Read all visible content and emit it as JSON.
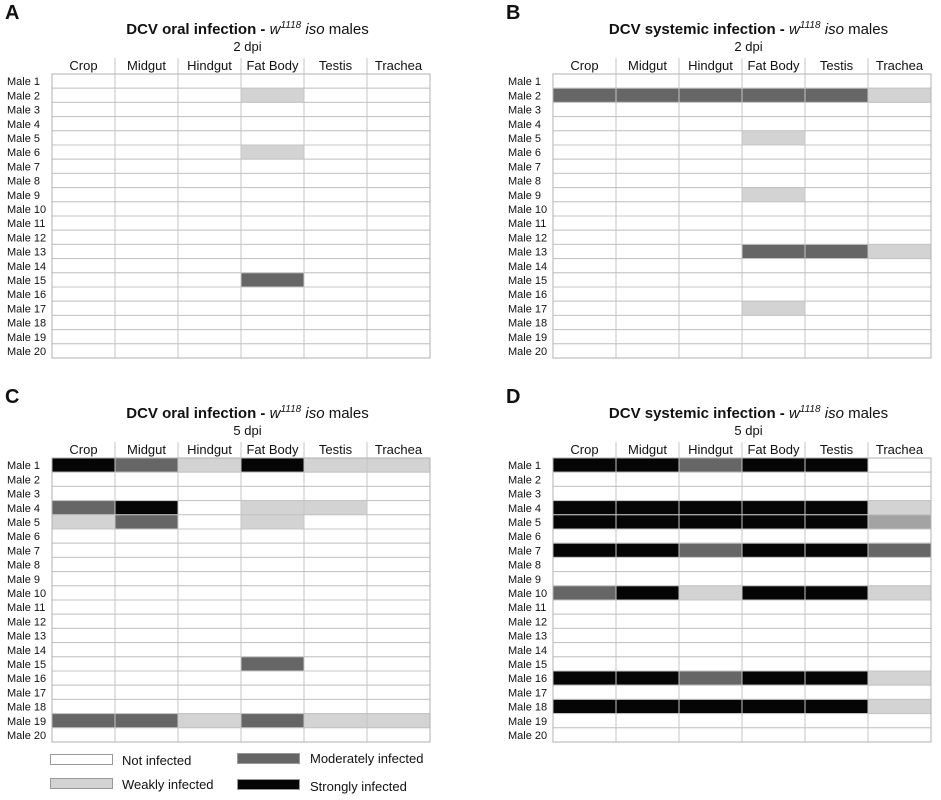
{
  "legend": {
    "not": "Not infected",
    "weak": "Weakly infected",
    "moderate": "Moderately infected",
    "strong": "Strongly infected"
  },
  "colors": {
    "none": "#ffffff",
    "weak": "#d3d3d3",
    "moderate": "#666666",
    "strong": "#050505",
    "trachea_medium": "#a3a3a3"
  },
  "chart_data": [
    {
      "type": "heatmap",
      "panel": "A",
      "title_main": "DCV oral infection - ",
      "title_genotype": "w",
      "title_superscript": "1118",
      "title_iso": " iso",
      "title_suffix": " males",
      "subtitle": "2 dpi",
      "columns": [
        "Crop",
        "Midgut",
        "Hindgut",
        "Fat Body",
        "Testis",
        "Trachea"
      ],
      "rows": [
        "Male 1",
        "Male 2",
        "Male 3",
        "Male 4",
        "Male 5",
        "Male 6",
        "Male 7",
        "Male 8",
        "Male 9",
        "Male 10",
        "Male 11",
        "Male 12",
        "Male 13",
        "Male 14",
        "Male 15",
        "Male 16",
        "Male 17",
        "Male 18",
        "Male 19",
        "Male 20"
      ],
      "values": [
        [
          0,
          0,
          0,
          0,
          0,
          0
        ],
        [
          0,
          0,
          0,
          1,
          0,
          0
        ],
        [
          0,
          0,
          0,
          0,
          0,
          0
        ],
        [
          0,
          0,
          0,
          0,
          0,
          0
        ],
        [
          0,
          0,
          0,
          0,
          0,
          0
        ],
        [
          0,
          0,
          0,
          1,
          0,
          0
        ],
        [
          0,
          0,
          0,
          0,
          0,
          0
        ],
        [
          0,
          0,
          0,
          0,
          0,
          0
        ],
        [
          0,
          0,
          0,
          0,
          0,
          0
        ],
        [
          0,
          0,
          0,
          0,
          0,
          0
        ],
        [
          0,
          0,
          0,
          0,
          0,
          0
        ],
        [
          0,
          0,
          0,
          0,
          0,
          0
        ],
        [
          0,
          0,
          0,
          0,
          0,
          0
        ],
        [
          0,
          0,
          0,
          0,
          0,
          0
        ],
        [
          0,
          0,
          0,
          2,
          0,
          0
        ],
        [
          0,
          0,
          0,
          0,
          0,
          0
        ],
        [
          0,
          0,
          0,
          0,
          0,
          0
        ],
        [
          0,
          0,
          0,
          0,
          0,
          0
        ],
        [
          0,
          0,
          0,
          0,
          0,
          0
        ],
        [
          0,
          0,
          0,
          0,
          0,
          0
        ]
      ]
    },
    {
      "type": "heatmap",
      "panel": "B",
      "title_main": "DCV systemic infection - ",
      "title_genotype": "w",
      "title_superscript": "1118",
      "title_iso": " iso",
      "title_suffix": " males",
      "subtitle": "2 dpi",
      "columns": [
        "Crop",
        "Midgut",
        "Hindgut",
        "Fat Body",
        "Testis",
        "Trachea"
      ],
      "rows": [
        "Male 1",
        "Male 2",
        "Male 3",
        "Male 4",
        "Male 5",
        "Male 6",
        "Male 7",
        "Male 8",
        "Male 9",
        "Male 10",
        "Male 11",
        "Male 12",
        "Male 13",
        "Male 14",
        "Male 15",
        "Male 16",
        "Male 17",
        "Male 18",
        "Male 19",
        "Male 20"
      ],
      "values": [
        [
          0,
          0,
          0,
          0,
          0,
          0
        ],
        [
          2,
          2,
          2,
          2,
          2,
          1
        ],
        [
          0,
          0,
          0,
          0,
          0,
          0
        ],
        [
          0,
          0,
          0,
          0,
          0,
          0
        ],
        [
          0,
          0,
          0,
          1,
          0,
          0
        ],
        [
          0,
          0,
          0,
          0,
          0,
          0
        ],
        [
          0,
          0,
          0,
          0,
          0,
          0
        ],
        [
          0,
          0,
          0,
          0,
          0,
          0
        ],
        [
          0,
          0,
          0,
          1,
          0,
          0
        ],
        [
          0,
          0,
          0,
          0,
          0,
          0
        ],
        [
          0,
          0,
          0,
          0,
          0,
          0
        ],
        [
          0,
          0,
          0,
          0,
          0,
          0
        ],
        [
          0,
          0,
          0,
          2,
          2,
          1
        ],
        [
          0,
          0,
          0,
          0,
          0,
          0
        ],
        [
          0,
          0,
          0,
          0,
          0,
          0
        ],
        [
          0,
          0,
          0,
          0,
          0,
          0
        ],
        [
          0,
          0,
          0,
          1,
          0,
          0
        ],
        [
          0,
          0,
          0,
          0,
          0,
          0
        ],
        [
          0,
          0,
          0,
          0,
          0,
          0
        ],
        [
          0,
          0,
          0,
          0,
          0,
          0
        ]
      ]
    },
    {
      "type": "heatmap",
      "panel": "C",
      "title_main": "DCV oral infection - ",
      "title_genotype": "w",
      "title_superscript": "1118",
      "title_iso": " iso",
      "title_suffix": " males",
      "subtitle": "5 dpi",
      "columns": [
        "Crop",
        "Midgut",
        "Hindgut",
        "Fat Body",
        "Testis",
        "Trachea"
      ],
      "rows": [
        "Male 1",
        "Male 2",
        "Male 3",
        "Male 4",
        "Male 5",
        "Male 6",
        "Male 7",
        "Male 8",
        "Male 9",
        "Male 10",
        "Male 11",
        "Male 12",
        "Male 13",
        "Male 14",
        "Male 15",
        "Male 16",
        "Male 17",
        "Male 18",
        "Male 19",
        "Male 20"
      ],
      "values": [
        [
          3,
          2,
          1,
          3,
          1,
          1
        ],
        [
          0,
          0,
          0,
          0,
          0,
          0
        ],
        [
          0,
          0,
          0,
          0,
          0,
          0
        ],
        [
          2,
          3,
          0,
          1,
          1,
          0
        ],
        [
          1,
          2,
          0,
          1,
          0,
          0
        ],
        [
          0,
          0,
          0,
          0,
          0,
          0
        ],
        [
          0,
          0,
          0,
          0,
          0,
          0
        ],
        [
          0,
          0,
          0,
          0,
          0,
          0
        ],
        [
          0,
          0,
          0,
          0,
          0,
          0
        ],
        [
          0,
          0,
          0,
          0,
          0,
          0
        ],
        [
          0,
          0,
          0,
          0,
          0,
          0
        ],
        [
          0,
          0,
          0,
          0,
          0,
          0
        ],
        [
          0,
          0,
          0,
          0,
          0,
          0
        ],
        [
          0,
          0,
          0,
          0,
          0,
          0
        ],
        [
          0,
          0,
          0,
          2,
          0,
          0
        ],
        [
          0,
          0,
          0,
          0,
          0,
          0
        ],
        [
          0,
          0,
          0,
          0,
          0,
          0
        ],
        [
          0,
          0,
          0,
          0,
          0,
          0
        ],
        [
          2,
          2,
          1,
          2,
          1,
          1
        ],
        [
          0,
          0,
          0,
          0,
          0,
          0
        ]
      ]
    },
    {
      "type": "heatmap",
      "panel": "D",
      "title_main": "DCV systemic infection - ",
      "title_genotype": "w",
      "title_superscript": "1118",
      "title_iso": " iso",
      "title_suffix": " males",
      "subtitle": "5 dpi",
      "columns": [
        "Crop",
        "Midgut",
        "Hindgut",
        "Fat Body",
        "Testis",
        "Trachea"
      ],
      "rows": [
        "Male 1",
        "Male 2",
        "Male 3",
        "Male 4",
        "Male 5",
        "Male 6",
        "Male 7",
        "Male 8",
        "Male 9",
        "Male 10",
        "Male 11",
        "Male 12",
        "Male 13",
        "Male 14",
        "Male 15",
        "Male 16",
        "Male 17",
        "Male 18",
        "Male 19",
        "Male 20"
      ],
      "values": [
        [
          3,
          3,
          2,
          3,
          3,
          0
        ],
        [
          0,
          0,
          0,
          0,
          0,
          0
        ],
        [
          0,
          0,
          0,
          0,
          0,
          0
        ],
        [
          3,
          3,
          3,
          3,
          3,
          1
        ],
        [
          3,
          3,
          3,
          3,
          3,
          1.5
        ],
        [
          0,
          0,
          0,
          0,
          0,
          0
        ],
        [
          3,
          3,
          2,
          3,
          3,
          2
        ],
        [
          0,
          0,
          0,
          0,
          0,
          0
        ],
        [
          0,
          0,
          0,
          0,
          0,
          0
        ],
        [
          2,
          3,
          1,
          3,
          3,
          1
        ],
        [
          0,
          0,
          0,
          0,
          0,
          0
        ],
        [
          0,
          0,
          0,
          0,
          0,
          0
        ],
        [
          0,
          0,
          0,
          0,
          0,
          0
        ],
        [
          0,
          0,
          0,
          0,
          0,
          0
        ],
        [
          0,
          0,
          0,
          0,
          0,
          0
        ],
        [
          3,
          3,
          2,
          3,
          3,
          1
        ],
        [
          0,
          0,
          0,
          0,
          0,
          0
        ],
        [
          3,
          3,
          3,
          3,
          3,
          1
        ],
        [
          0,
          0,
          0,
          0,
          0,
          0
        ],
        [
          0,
          0,
          0,
          0,
          0,
          0
        ]
      ]
    }
  ]
}
